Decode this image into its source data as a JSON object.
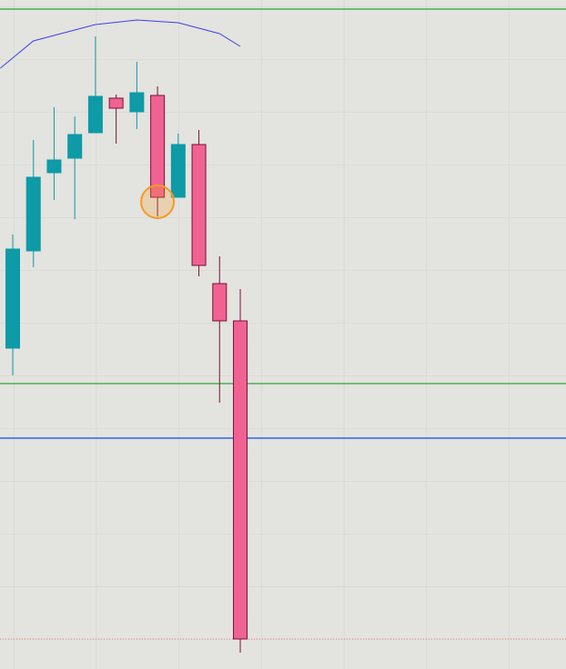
{
  "chart_data": {
    "type": "candlestick",
    "categories": [
      null,
      null,
      null,
      null,
      null,
      null,
      null,
      null,
      null,
      null,
      null,
      null
    ],
    "open": [
      353,
      460,
      546,
      562,
      590,
      628,
      613,
      631,
      519,
      577,
      424,
      383
    ],
    "high": [
      478,
      582,
      618,
      608,
      696,
      632,
      668,
      641,
      589,
      593,
      454,
      418
    ],
    "low": [
      323,
      442,
      516,
      495,
      590,
      578,
      594,
      498,
      519,
      432,
      293,
      18
    ],
    "close": [
      462,
      541,
      560,
      588,
      630,
      617,
      634,
      519,
      577,
      444,
      383,
      33
    ],
    "up_color": "#0e9aa7",
    "down_color": "#f06292",
    "ylim": [
      0,
      736
    ],
    "lines": [
      {
        "value": 726,
        "color": "#4caf50",
        "style": "solid"
      },
      {
        "value": 314,
        "color": "#4caf50",
        "style": "solid"
      },
      {
        "value": 254,
        "color": "#2962ff",
        "style": "solid"
      },
      {
        "value": 33,
        "color": "#e57373",
        "style": "dotted"
      }
    ],
    "overlay": {
      "color": "#3f3fe8",
      "x": [
        -0.6,
        1,
        4,
        6,
        8,
        10,
        11
      ],
      "values": [
        661,
        691,
        709,
        714,
        711,
        699,
        685
      ]
    },
    "marker": {
      "index": 7,
      "value": 514,
      "color": "#f59a23"
    }
  }
}
